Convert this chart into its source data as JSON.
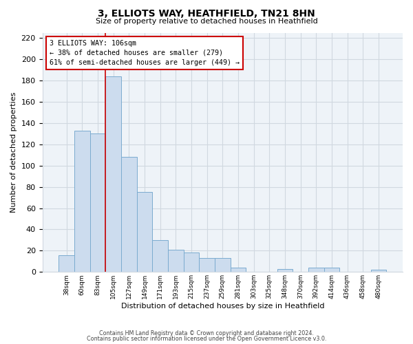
{
  "title": "3, ELLIOTS WAY, HEATHFIELD, TN21 8HN",
  "subtitle": "Size of property relative to detached houses in Heathfield",
  "xlabel": "Distribution of detached houses by size in Heathfield",
  "ylabel": "Number of detached properties",
  "bar_color": "#ccdcee",
  "bar_edge_color": "#7aabcf",
  "categories": [
    "38sqm",
    "60sqm",
    "83sqm",
    "105sqm",
    "127sqm",
    "149sqm",
    "171sqm",
    "193sqm",
    "215sqm",
    "237sqm",
    "259sqm",
    "281sqm",
    "303sqm",
    "325sqm",
    "348sqm",
    "370sqm",
    "392sqm",
    "414sqm",
    "436sqm",
    "458sqm",
    "480sqm"
  ],
  "values": [
    16,
    133,
    130,
    184,
    108,
    75,
    30,
    21,
    18,
    13,
    13,
    4,
    0,
    0,
    3,
    0,
    4,
    4,
    0,
    0,
    2
  ],
  "vline_x_index": 3,
  "vline_color": "#cc0000",
  "annotation_line1": "3 ELLIOTS WAY: 106sqm",
  "annotation_line2": "← 38% of detached houses are smaller (279)",
  "annotation_line3": "61% of semi-detached houses are larger (449) →",
  "annotation_box_color": "#ffffff",
  "annotation_box_edge": "#cc0000",
  "ylim": [
    0,
    225
  ],
  "yticks": [
    0,
    20,
    40,
    60,
    80,
    100,
    120,
    140,
    160,
    180,
    200,
    220
  ],
  "footnote1": "Contains HM Land Registry data © Crown copyright and database right 2024.",
  "footnote2": "Contains public sector information licensed under the Open Government Licence v3.0.",
  "grid_color": "#d0d8e0",
  "plot_bg_color": "#eef3f8",
  "background_color": "#ffffff"
}
